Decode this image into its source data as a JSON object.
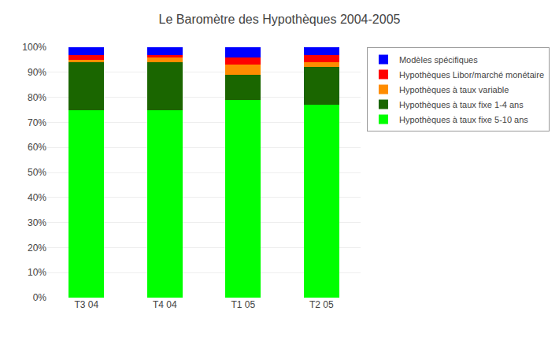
{
  "chart_data": {
    "type": "bar",
    "title": "Le Baromètre des Hypothèques 2004-2005",
    "categories": [
      "T3 04",
      "T4 04",
      "T1 05",
      "T2 05"
    ],
    "series": [
      {
        "name": "Hypothèques à taux fixe 5-10 ans",
        "color": "#00ff00",
        "values": [
          75,
          75,
          79,
          77
        ]
      },
      {
        "name": "Hypothèques à taux fixe 1-4 ans",
        "color": "#1a6600",
        "values": [
          19,
          19,
          10,
          15
        ]
      },
      {
        "name": "Hypothèques à taux variable",
        "color": "#ff8c00",
        "values": [
          1,
          2,
          4,
          2
        ]
      },
      {
        "name": "Hypothèques Libor/marché monétaire",
        "color": "#ff0000",
        "values": [
          2,
          1,
          3,
          3
        ]
      },
      {
        "name": "Modèles spécifiques",
        "color": "#0000ff",
        "values": [
          3,
          3,
          4,
          3
        ]
      }
    ],
    "ylim": [
      0,
      100
    ],
    "yticks": [
      {
        "value": 0,
        "label": "0%"
      },
      {
        "value": 10,
        "label": "10%"
      },
      {
        "value": 20,
        "label": "20%"
      },
      {
        "value": 30,
        "label": "30%"
      },
      {
        "value": 40,
        "label": "40%"
      },
      {
        "value": 50,
        "label": "50%"
      },
      {
        "value": 60,
        "label": "60%"
      },
      {
        "value": 70,
        "label": "70%"
      },
      {
        "value": 80,
        "label": "80%"
      },
      {
        "value": 90,
        "label": "90%"
      },
      {
        "value": 100,
        "label": "100%"
      }
    ],
    "grid": true,
    "stacked": true,
    "legend": "upper right"
  }
}
